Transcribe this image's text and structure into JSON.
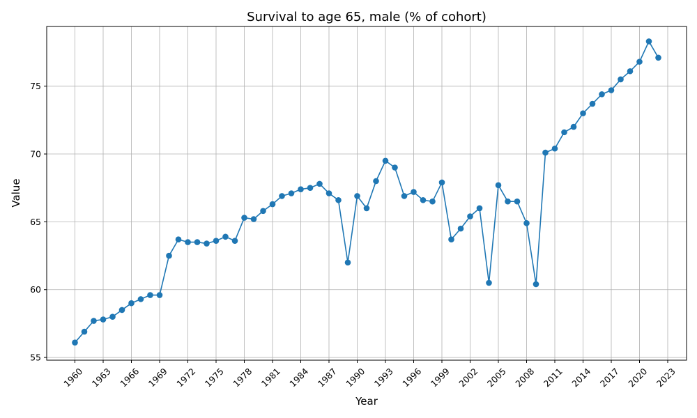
{
  "chart_data": {
    "type": "line",
    "title": "Survival to age 65, male (% of cohort)",
    "xlabel": "Year",
    "ylabel": "Value",
    "xlim": [
      1957,
      2025
    ],
    "ylim": [
      54.8,
      79.4
    ],
    "xticks": [
      1960,
      1963,
      1966,
      1969,
      1972,
      1975,
      1978,
      1981,
      1984,
      1987,
      1990,
      1993,
      1996,
      1999,
      2002,
      2005,
      2008,
      2011,
      2014,
      2017,
      2020,
      2023
    ],
    "yticks": [
      55,
      60,
      65,
      70,
      75
    ],
    "grid": true,
    "marker": "circle",
    "line_color": "#1f77b4",
    "x": [
      1960,
      1961,
      1962,
      1963,
      1964,
      1965,
      1966,
      1967,
      1968,
      1969,
      1970,
      1971,
      1972,
      1973,
      1974,
      1975,
      1976,
      1977,
      1978,
      1979,
      1980,
      1981,
      1982,
      1983,
      1984,
      1985,
      1986,
      1987,
      1988,
      1989,
      1990,
      1991,
      1992,
      1993,
      1994,
      1995,
      1996,
      1997,
      1998,
      1999,
      2000,
      2001,
      2002,
      2003,
      2004,
      2005,
      2006,
      2007,
      2008,
      2009,
      2010,
      2011,
      2012,
      2013,
      2014,
      2015,
      2016,
      2017,
      2018,
      2019,
      2020,
      2021,
      2022
    ],
    "y": [
      56.1,
      56.9,
      57.7,
      57.8,
      58.0,
      58.5,
      59.0,
      59.3,
      59.6,
      59.6,
      62.5,
      63.7,
      63.5,
      63.5,
      63.4,
      63.6,
      63.9,
      63.6,
      65.3,
      65.2,
      65.8,
      66.3,
      66.9,
      67.1,
      67.4,
      67.5,
      67.8,
      67.1,
      66.6,
      62.0,
      66.9,
      66.0,
      68.0,
      69.5,
      69.0,
      66.9,
      67.2,
      66.6,
      66.5,
      67.9,
      63.7,
      64.5,
      65.4,
      66.0,
      60.5,
      67.7,
      66.5,
      66.5,
      64.9,
      60.4,
      70.1,
      70.4,
      71.6,
      72.0,
      73.0,
      73.7,
      74.4,
      74.7,
      75.5,
      76.1,
      76.8,
      78.3,
      77.1
    ]
  }
}
